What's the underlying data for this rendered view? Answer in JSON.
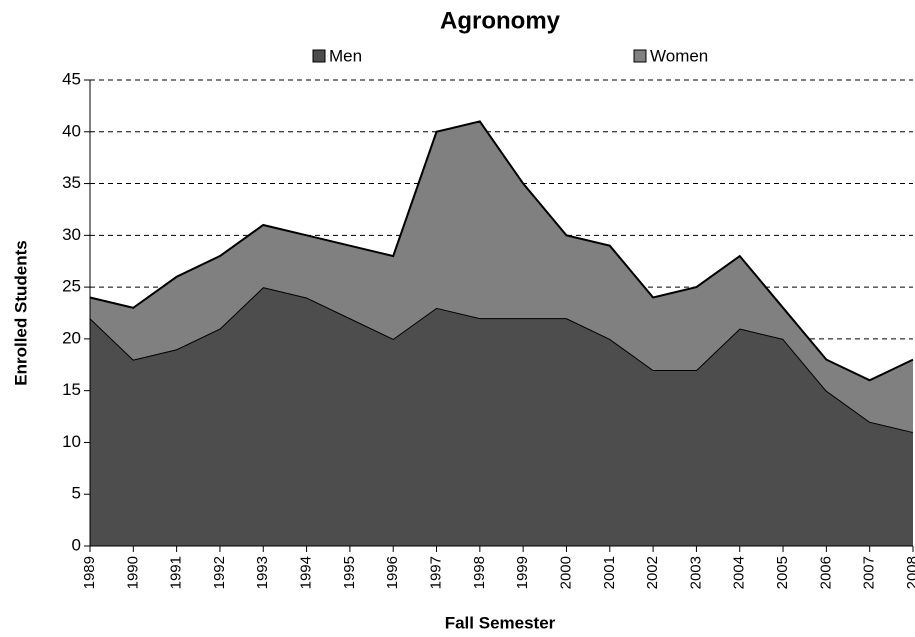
{
  "chart_data": {
    "type": "area",
    "stacked": true,
    "title": "Agronomy",
    "x_label": "Fall Semester",
    "y_label": "Enrolled Students",
    "categories": [
      "1989",
      "1990",
      "1991",
      "1992",
      "1993",
      "1994",
      "1995",
      "1996",
      "1997",
      "1998",
      "1999",
      "2000",
      "2001",
      "2002",
      "2003",
      "2004",
      "2005",
      "2006",
      "2007",
      "2008"
    ],
    "series": [
      {
        "name": "Men",
        "color": "#4d4d4d",
        "values": [
          22,
          18,
          19,
          21,
          25,
          24,
          22,
          20,
          23,
          22,
          22,
          22,
          20,
          17,
          17,
          21,
          20,
          15,
          12,
          11
        ]
      },
      {
        "name": "Women",
        "color": "#808080",
        "values": [
          2,
          5,
          7,
          7,
          6,
          6,
          7,
          8,
          17,
          19,
          13,
          8,
          9,
          7,
          8,
          7,
          3,
          3,
          4,
          7
        ]
      }
    ],
    "ylim": [
      0,
      45
    ],
    "yticks": [
      0,
      5,
      10,
      15,
      20,
      25,
      30,
      35,
      40,
      45
    ],
    "grid": true,
    "legend": "top"
  }
}
